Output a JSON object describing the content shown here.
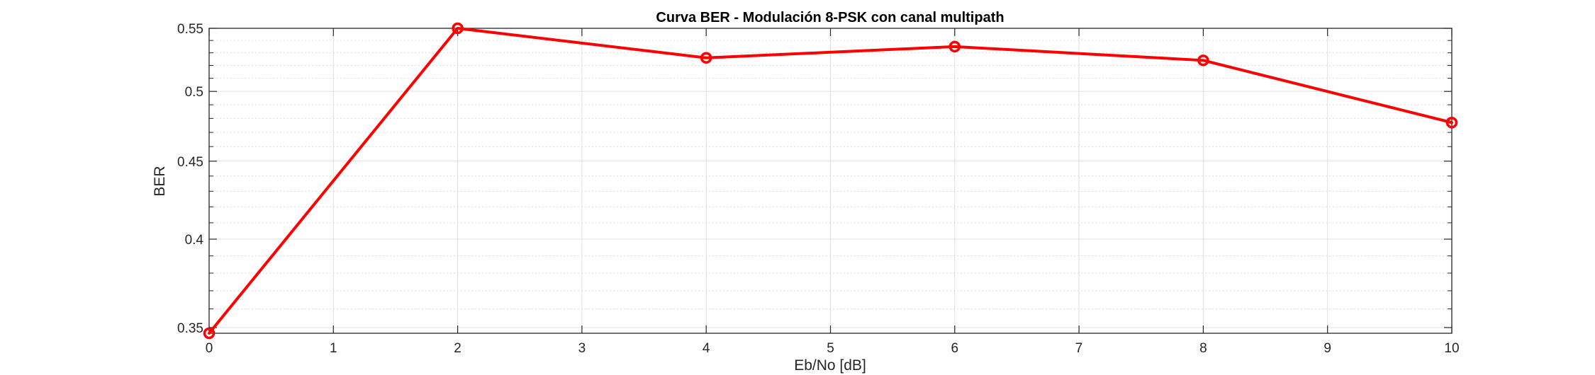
{
  "chart_data": {
    "type": "line",
    "title": "Curva BER - Modulación 8-PSK con canal multipath",
    "xlabel": "Eb/No [dB]",
    "ylabel": "BER",
    "x": [
      0,
      2,
      4,
      6,
      8,
      10
    ],
    "series": [
      {
        "values": [
          0.347,
          0.55,
          0.526,
          0.535,
          0.524,
          0.477
        ],
        "color": "#ff0000",
        "marker": "circle"
      }
    ],
    "xlim": [
      0,
      10
    ],
    "ylim": [
      0.347,
      0.55
    ],
    "yscale": "log",
    "xticks": [
      0,
      1,
      2,
      3,
      4,
      5,
      6,
      7,
      8,
      9,
      10
    ],
    "xtick_labels": [
      "0",
      "1",
      "2",
      "3",
      "4",
      "5",
      "6",
      "7",
      "8",
      "9",
      "10"
    ],
    "yticks": [
      0.35,
      0.4,
      0.45,
      0.5,
      0.55
    ],
    "ytick_labels": [
      "0.35",
      "0.4",
      "0.45",
      "0.5",
      "0.55"
    ],
    "grid": true,
    "minor_grid": true,
    "legend": false
  }
}
